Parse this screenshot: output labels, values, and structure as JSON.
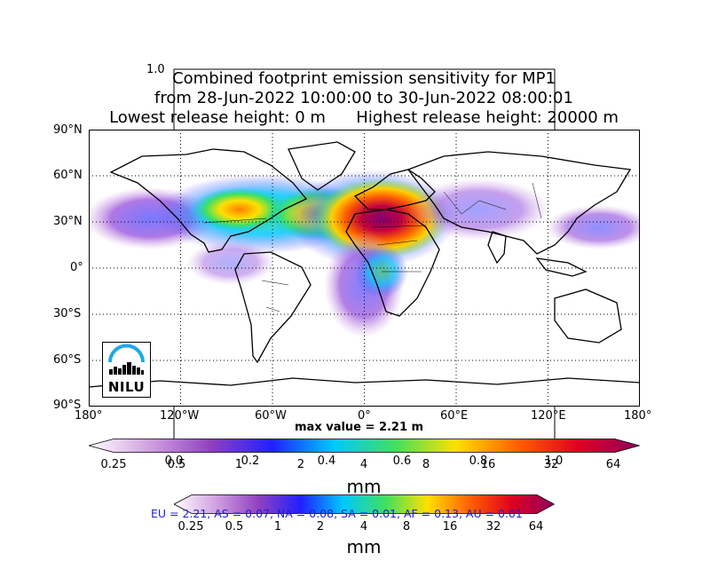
{
  "figure": {
    "title_lines": [
      "Combined footprint emission sensitivity for MP1",
      "from 28-Jun-2022 10:00:00 to 30-Jun-2022 08:00:01",
      "Lowest release height: 0 m      Highest release height: 20000 m"
    ],
    "ghost_axis_label": "1.0",
    "max_value_label": "max value = 2.21 m"
  },
  "map": {
    "lat_labels": [
      "90°N",
      "60°N",
      "30°N",
      "0°",
      "30°S",
      "60°S",
      "90°S"
    ],
    "lon_labels": [
      "180°",
      "120°W",
      "60°W",
      "0°",
      "60°E",
      "120°E",
      "180°"
    ],
    "logo_text": "NILU"
  },
  "colorbar_main": {
    "tick_labels": [
      "0.25",
      "0.5",
      "1",
      "2",
      "4",
      "8",
      "16",
      "32",
      "64"
    ],
    "ghost_ticks": [
      "0.0",
      "0.2",
      "0.4",
      "0.6",
      "0.8",
      "1.0"
    ],
    "units": "mm",
    "colors": [
      "#ffffff",
      "#d0a0e0",
      "#9040c0",
      "#2020ff",
      "#00c8ff",
      "#40e060",
      "#ffe000",
      "#ff6000",
      "#e00020",
      "#900060"
    ]
  },
  "colorbar_secondary": {
    "tick_labels": [
      "0.25",
      "0.5",
      "1",
      "2",
      "4",
      "8",
      "16",
      "32",
      "64"
    ],
    "units": "mm",
    "region_summary": "EU = 2.21,  AS = 0.07,  NA = 0.08,  SA = 0.01,  AF = 0.13,  AU = 0.01"
  }
}
